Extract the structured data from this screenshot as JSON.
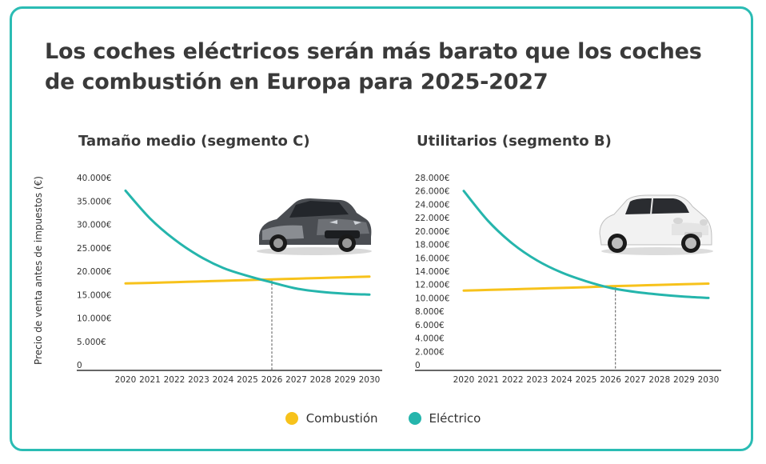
{
  "title": "Los coches eléctricos serán más barato que los coches de combustión en Europa para 2025-2027",
  "y_axis_label": "Precio de venta antes de impuestos (€)",
  "legend": [
    {
      "label": "Combustión",
      "color": "#f7c21b"
    },
    {
      "label": "Eléctrico",
      "color": "#25b5ac"
    }
  ],
  "chart_data": [
    {
      "type": "line",
      "title": "Tamaño medio (segmento C)",
      "xlabel": "",
      "ylabel": "Precio de venta antes de impuestos (€)",
      "x": [
        2020,
        2021,
        2022,
        2023,
        2024,
        2025,
        2026,
        2027,
        2028,
        2029,
        2030
      ],
      "x_tick_labels": [
        "2020",
        "2021",
        "2022",
        "2023",
        "2024",
        "2025",
        "2026",
        "2027",
        "2028",
        "2029",
        "2030"
      ],
      "ylim": [
        0,
        40000
      ],
      "y_ticks": [
        0,
        5000,
        10000,
        15000,
        20000,
        25000,
        30000,
        35000,
        40000
      ],
      "y_tick_labels": [
        "0",
        "5.000€",
        "10.000€",
        "15.000€",
        "20.000€",
        "25.000€",
        "30.000€",
        "35.000€",
        "40.000€"
      ],
      "series": [
        {
          "name": "Combustión",
          "values": [
            17400,
            17500,
            17650,
            17800,
            17950,
            18100,
            18250,
            18400,
            18550,
            18700,
            18850
          ]
        },
        {
          "name": "Eléctrico",
          "values": [
            37200,
            31300,
            26800,
            23300,
            20700,
            19000,
            17600,
            16300,
            15600,
            15200,
            15000
          ]
        }
      ],
      "crossover_x": 2026
    },
    {
      "type": "line",
      "title": "Utilitarios (segmento B)",
      "xlabel": "",
      "ylabel": "",
      "x": [
        2020,
        2021,
        2022,
        2023,
        2024,
        2025,
        2026,
        2027,
        2028,
        2029,
        2030
      ],
      "x_tick_labels": [
        "2020",
        "2021",
        "2022",
        "2023",
        "2024",
        "2025",
        "2026",
        "2027",
        "2028",
        "2029",
        "2030"
      ],
      "ylim": [
        0,
        28000
      ],
      "y_ticks": [
        0,
        2000,
        4000,
        6000,
        8000,
        10000,
        12000,
        14000,
        16000,
        18000,
        20000,
        22000,
        24000,
        26000,
        28000
      ],
      "y_tick_labels": [
        "0",
        "2.000€",
        "4.000€",
        "6.000€",
        "8.000€",
        "10.000€",
        "12.000€",
        "14.000€",
        "16.000€",
        "18.000€",
        "20.000€",
        "22.000€",
        "24.000€",
        "26.000€",
        "28.000€"
      ],
      "series": [
        {
          "name": "Combustión",
          "values": [
            11100,
            11200,
            11300,
            11400,
            11500,
            11600,
            11750,
            11850,
            11950,
            12050,
            12150
          ]
        },
        {
          "name": "Eléctrico",
          "values": [
            26000,
            21500,
            18100,
            15600,
            13800,
            12500,
            11500,
            10900,
            10500,
            10200,
            10000
          ]
        }
      ],
      "crossover_x": 2026.2
    }
  ]
}
